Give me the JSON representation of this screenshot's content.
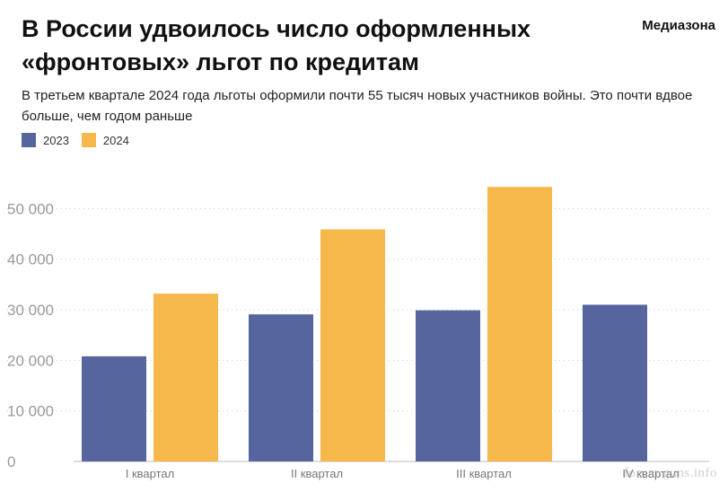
{
  "header": {
    "title": "В России удвоилось число оформленных «фронтовых» льгот по кредитам",
    "brand": "Медиазона",
    "subtitle": "В третьем квартале 2024 года льготы оформили почти 55 тысяч новых участников войны. Это почти вдвое больше, чем годом раньше"
  },
  "colors": {
    "series_2023": "#57659e",
    "series_2024": "#f6b84b",
    "grid": "#cccccc"
  },
  "watermark": "forum.guns.info",
  "chart_data": {
    "type": "bar",
    "title": "В России удвоилось число оформленных «фронтовых» льгот по кредитам",
    "subtitle": "В третьем квартале 2024 года льготы оформили почти 55 тысяч новых участников войны. Это почти вдвое больше, чем годом раньше",
    "categories": [
      "I квартал",
      "II квартал",
      "III квартал",
      "IV квартал"
    ],
    "series": [
      {
        "name": "2023",
        "values": [
          20800,
          29100,
          29900,
          31000
        ]
      },
      {
        "name": "2024",
        "values": [
          33200,
          45900,
          54300,
          null
        ]
      }
    ],
    "yticks": [
      0,
      10000,
      20000,
      30000,
      40000,
      50000
    ],
    "ytick_labels": [
      "0",
      "10 000",
      "20 000",
      "30 000",
      "40 000",
      "50 000"
    ],
    "ylim": [
      0,
      57000
    ],
    "grid": true,
    "legend_position": "top-left",
    "xlabel": "",
    "ylabel": ""
  }
}
